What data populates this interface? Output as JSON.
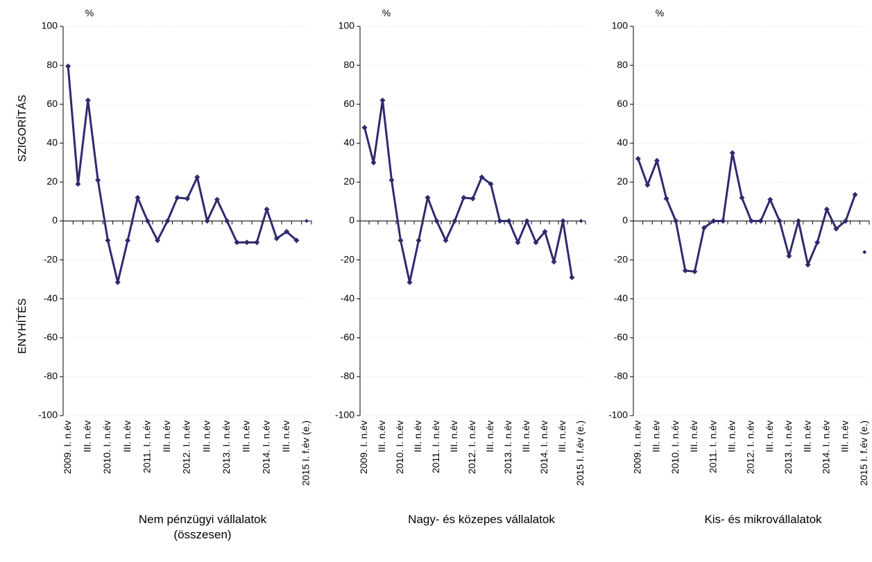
{
  "chart_data": [
    {
      "type": "line",
      "unit": "%",
      "y_label_top": "SZIGORÍTÁS",
      "y_label_bottom": "ENYHÍTÉS",
      "caption": "Nem pénzügyi vállalatok (összesen)",
      "categories": [
        "2009. I. n.év",
        null,
        "III. n.év",
        null,
        "2010. I. n.év",
        null,
        "III. n.év",
        null,
        "2011. I. n.év",
        null,
        "III. n.év",
        null,
        "2012. I. n.év",
        null,
        "III. n.év",
        null,
        "2013. I. n.év",
        null,
        "III. n.év",
        null,
        "2014. I. n.év",
        null,
        "III. n.év",
        null,
        "2015 I. f.év (e.)"
      ],
      "series": [
        {
          "color": "#2e2a6e",
          "values": [
            79.5,
            19,
            62,
            21,
            -10,
            -31.5,
            -10,
            12,
            0,
            -10,
            0,
            12,
            11.5,
            22.5,
            0,
            11,
            0,
            -11,
            -11,
            -11,
            6,
            -9,
            -5.5,
            -10,
            null
          ]
        },
        {
          "color": "#2e2a6e",
          "values": [
            null,
            null,
            null,
            null,
            null,
            null,
            null,
            null,
            null,
            null,
            null,
            null,
            null,
            null,
            null,
            null,
            null,
            null,
            null,
            null,
            null,
            null,
            null,
            null,
            0
          ]
        }
      ],
      "ylim": [
        -100,
        100
      ],
      "yticks": [
        -100,
        -80,
        -60,
        -40,
        -20,
        0,
        20,
        40,
        60,
        80,
        100
      ],
      "grid": true
    },
    {
      "type": "line",
      "unit": "%",
      "caption": "Nagy- és közepes vállalatok",
      "categories": [
        "2009. I. n.év",
        null,
        "III. n.év",
        null,
        "2010. I. n.év",
        null,
        "III. n.év",
        null,
        "2011. I. n.év",
        null,
        "III. n.év",
        null,
        "2012. I. n.év",
        null,
        "III. n.év",
        null,
        "2013. I. n.év",
        null,
        "III. n.év",
        null,
        "2014. I. n.év",
        null,
        "III. n.év",
        null,
        "2015 I. f.év (e.)"
      ],
      "series": [
        {
          "color": "#2e2a6e",
          "values": [
            48,
            30,
            62,
            21,
            -10,
            -31.5,
            -10,
            12,
            0,
            -10,
            0,
            12,
            11.5,
            22.5,
            19,
            0,
            0,
            -11,
            0,
            -11,
            -5.5,
            -21,
            0,
            -29,
            null
          ]
        },
        {
          "color": "#2e2a6e",
          "values": [
            null,
            null,
            null,
            null,
            null,
            null,
            null,
            null,
            null,
            null,
            null,
            null,
            null,
            null,
            null,
            null,
            null,
            null,
            null,
            null,
            null,
            null,
            null,
            null,
            0
          ]
        }
      ],
      "ylim": [
        -100,
        100
      ],
      "yticks": [
        -100,
        -80,
        -60,
        -40,
        -20,
        0,
        20,
        40,
        60,
        80,
        100
      ],
      "grid": true
    },
    {
      "type": "line",
      "unit": "%",
      "caption": "Kis- és mikrovállalatok",
      "categories": [
        "2009. I. n.év",
        null,
        "III. n.év",
        null,
        "2010. I. n.év",
        null,
        "III. n.év",
        null,
        "2011. I. n.év",
        null,
        "III. n.év",
        null,
        "2012. I. n.év",
        null,
        "III. n.év",
        null,
        "2013. I. n.év",
        null,
        "III. n.év",
        null,
        "2014. I. n.év",
        null,
        "III. n.év",
        null,
        "2015 I. f.év (e.)"
      ],
      "series": [
        {
          "color": "#2e2a6e",
          "values": [
            32,
            18.5,
            31,
            11.5,
            0,
            -25.5,
            -26,
            -3.5,
            0,
            0,
            35,
            12,
            0,
            0,
            11,
            0,
            -18,
            0,
            -22.5,
            -11,
            6,
            -4,
            0,
            13.5,
            null
          ]
        },
        {
          "color": "#2e2a6e",
          "values": [
            null,
            null,
            null,
            null,
            null,
            null,
            null,
            null,
            null,
            null,
            null,
            null,
            null,
            null,
            null,
            null,
            null,
            null,
            null,
            null,
            null,
            null,
            null,
            null,
            -16
          ]
        }
      ],
      "ylim": [
        -100,
        100
      ],
      "yticks": [
        -100,
        -80,
        -60,
        -40,
        -20,
        0,
        20,
        40,
        60,
        80,
        100
      ],
      "grid": true
    }
  ]
}
